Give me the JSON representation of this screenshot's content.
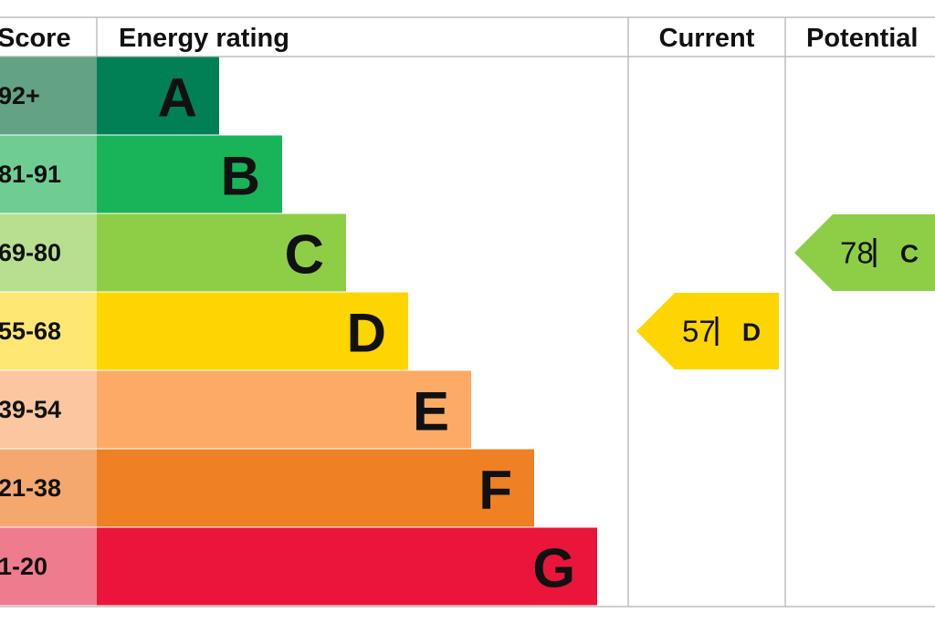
{
  "header": {
    "score": "Score",
    "rating": "Energy rating",
    "current": "Current",
    "potential": "Potential"
  },
  "bands": [
    {
      "score": "92+",
      "letter": "A"
    },
    {
      "score": "81-91",
      "letter": "B"
    },
    {
      "score": "69-80",
      "letter": "C"
    },
    {
      "score": "55-68",
      "letter": "D"
    },
    {
      "score": "39-54",
      "letter": "E"
    },
    {
      "score": "21-38",
      "letter": "F"
    },
    {
      "score": "1-20",
      "letter": "G"
    }
  ],
  "current": {
    "value": 57,
    "letter": "D"
  },
  "potential": {
    "value": 78,
    "letter": "C"
  }
}
